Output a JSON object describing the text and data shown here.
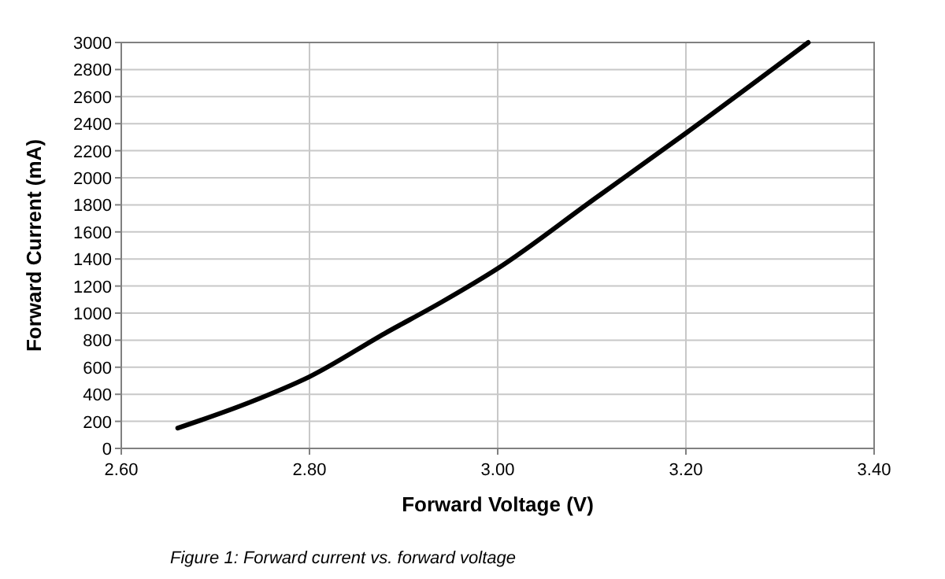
{
  "chart_data": {
    "type": "line",
    "xlabel": "Forward Voltage (V)",
    "ylabel": "Forward Current (mA)",
    "annotations": [
      "Figure 1: Forward current vs. forward voltage"
    ],
    "x": [
      2.66,
      2.74,
      2.8,
      2.88,
      2.94,
      3.0,
      3.1,
      3.2,
      3.33
    ],
    "series": [
      {
        "color": "#000000",
        "values": [
          150,
          350,
          530,
          850,
          1080,
          1330,
          1830,
          2330,
          3000
        ]
      }
    ],
    "xlim": [
      2.6,
      3.4
    ],
    "xticks": [
      {
        "value": 2.6,
        "label": "2.60"
      },
      {
        "value": 2.8,
        "label": "2.80"
      },
      {
        "value": 3.0,
        "label": "3.00"
      },
      {
        "value": 3.2,
        "label": "3.20"
      },
      {
        "value": 3.4,
        "label": "3.40"
      }
    ],
    "ylim": [
      0,
      3000
    ],
    "yticks": [
      0,
      200,
      400,
      600,
      800,
      1000,
      1200,
      1400,
      1600,
      1800,
      2000,
      2200,
      2400,
      2600,
      2800,
      3000
    ],
    "grid": true,
    "marker": "none",
    "line_style": "solid"
  }
}
